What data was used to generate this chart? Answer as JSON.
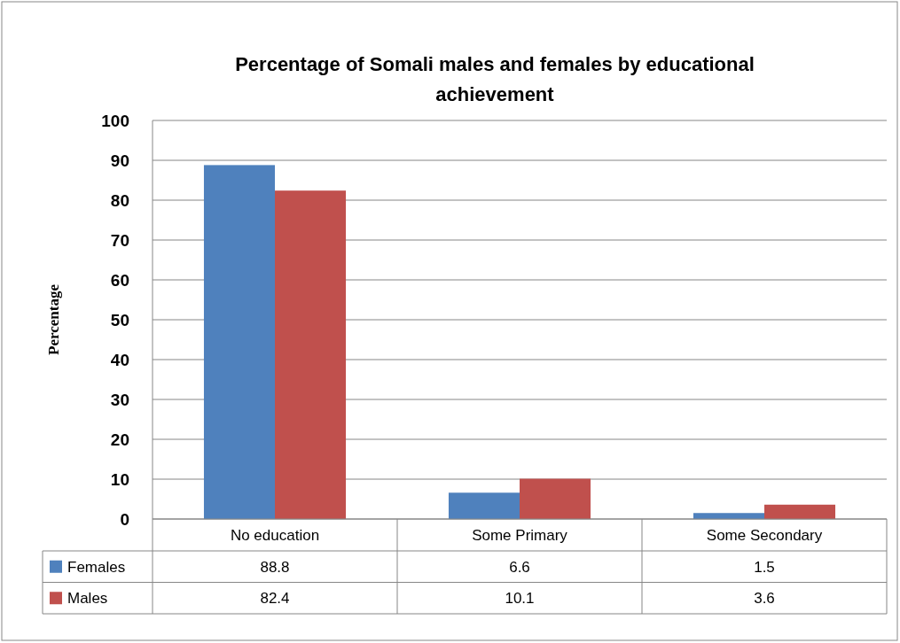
{
  "chart_data": {
    "type": "bar",
    "title": "Percentage of Somali males and females by educational achievement",
    "ylabel": "Percentage",
    "categories": [
      "No education",
      "Some Primary",
      "Some Secondary"
    ],
    "series": [
      {
        "name": "Females",
        "color": "#4f81bd",
        "values": [
          88.8,
          6.6,
          1.5
        ]
      },
      {
        "name": "Males",
        "color": "#c0504d",
        "values": [
          82.4,
          10.1,
          3.6
        ]
      }
    ],
    "ylim": [
      0,
      100
    ],
    "yticks": [
      0,
      10,
      20,
      30,
      40,
      50,
      60,
      70,
      80,
      90,
      100
    ],
    "grid": "y",
    "legend": "bottom",
    "data_labels": true
  }
}
